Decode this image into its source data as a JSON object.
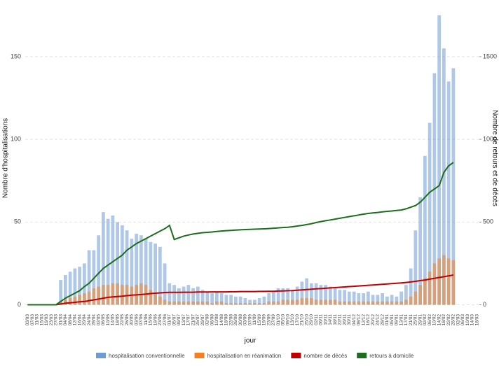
{
  "chart_data": {
    "type": "bar",
    "x_label": "jour",
    "y_label": "Nombre d'hospitalisations",
    "y2_label": "Nombre de retours et de décès",
    "categories": [
      "03/03",
      "07/03",
      "11/03",
      "15/03",
      "19/03",
      "23/03",
      "27/03",
      "31/03",
      "04/04",
      "08/04",
      "12/04",
      "16/04",
      "20/04",
      "24/04",
      "28/04",
      "02/05",
      "06/05",
      "10/05",
      "14/05",
      "18/05",
      "22/05",
      "26/05",
      "30/05",
      "03/06",
      "07/06",
      "11/06",
      "15/06",
      "19/06",
      "23/06",
      "27/06",
      "01/07",
      "05/07",
      "09/07",
      "13/07",
      "17/07",
      "21/07",
      "25/07",
      "29/07",
      "02/08",
      "06/08",
      "10/08",
      "14/08",
      "18/08",
      "22/08",
      "26/08",
      "30/08",
      "03/09",
      "07/09",
      "11/09",
      "15/09",
      "19/09",
      "23/09",
      "27/09",
      "01/10",
      "05/10",
      "09/10",
      "13/10",
      "17/10",
      "21/10",
      "25/10",
      "29/10",
      "02/11",
      "06/11",
      "10/11",
      "14/11",
      "18/11",
      "22/11",
      "26/11",
      "30/11",
      "04/12",
      "08/12",
      "12/12",
      "16/12",
      "20/12",
      "24/12",
      "28/12",
      "01/01",
      "05/01",
      "09/01",
      "13/01",
      "17/01",
      "21/01",
      "25/01",
      "29/01",
      "02/02",
      "06/02",
      "10/02",
      "14/02",
      "18/02",
      "22/02",
      "26/02",
      "02/03",
      "06/03",
      "10/03",
      "14/03",
      "18/03"
    ],
    "ylim": [
      -4,
      180
    ],
    "yticks": [
      0,
      50,
      100,
      150
    ],
    "y2lim": [
      -40,
      1800
    ],
    "y2ticks": [
      0,
      500,
      1000,
      1500
    ],
    "grid": true,
    "legend": "bottom",
    "series": [
      {
        "name": "hospitalisation conventionnelle",
        "type": "bar",
        "color": "#6d9bd3",
        "values": [
          0,
          0,
          0,
          0,
          0,
          0,
          0,
          15,
          18,
          20,
          22,
          23,
          25,
          33,
          33,
          42,
          56,
          52,
          54,
          50,
          48,
          45,
          40,
          43,
          42,
          40,
          38,
          37,
          35,
          25,
          13,
          12,
          10,
          11,
          12,
          10,
          11,
          9,
          8,
          7,
          8,
          7,
          6,
          6,
          5,
          5,
          4,
          3,
          3,
          4,
          5,
          7,
          8,
          10,
          10,
          10,
          9,
          11,
          14,
          16,
          13,
          13,
          12,
          12,
          11,
          10,
          9,
          9,
          8,
          8,
          7,
          7,
          8,
          6,
          6,
          7,
          5,
          6,
          5,
          8,
          12,
          22,
          45,
          65,
          90,
          110,
          140,
          175,
          155,
          135,
          143,
          null,
          null,
          null,
          null,
          null
        ]
      },
      {
        "name": "hospitalisation en réanimation",
        "type": "bar",
        "color": "#f47f24",
        "values": [
          0,
          0,
          0,
          0,
          0,
          0,
          0,
          2,
          3,
          4,
          5,
          6,
          7,
          8,
          10,
          11,
          12,
          12,
          13,
          13,
          12,
          12,
          11,
          12,
          13,
          12,
          9,
          7,
          5,
          3,
          2,
          2,
          2,
          2,
          2,
          2,
          2,
          2,
          2,
          1,
          2,
          2,
          1,
          1,
          1,
          1,
          1,
          1,
          1,
          1,
          1,
          2,
          2,
          2,
          3,
          3,
          3,
          3,
          4,
          4,
          4,
          3,
          3,
          3,
          3,
          3,
          2,
          2,
          2,
          2,
          2,
          2,
          2,
          2,
          2,
          2,
          2,
          2,
          2,
          2,
          3,
          5,
          8,
          12,
          16,
          20,
          25,
          28,
          30,
          28,
          27,
          null,
          null,
          null,
          null,
          null
        ]
      },
      {
        "name": "nombre de décès",
        "type": "line",
        "axis": "y2",
        "color": "#c00000",
        "values": [
          0,
          0,
          0,
          0,
          0,
          0,
          0,
          5,
          10,
          12,
          15,
          18,
          20,
          25,
          30,
          35,
          40,
          45,
          48,
          50,
          52,
          55,
          58,
          60,
          62,
          65,
          68,
          70,
          72,
          74,
          75,
          75,
          75,
          76,
          76,
          76,
          77,
          77,
          77,
          78,
          78,
          78,
          78,
          79,
          79,
          80,
          80,
          80,
          80,
          81,
          81,
          82,
          82,
          83,
          84,
          85,
          86,
          88,
          90,
          92,
          94,
          96,
          98,
          100,
          102,
          104,
          106,
          108,
          110,
          112,
          114,
          116,
          118,
          120,
          122,
          124,
          126,
          128,
          130,
          132,
          135,
          138,
          142,
          146,
          150,
          155,
          160,
          165,
          170,
          175,
          180,
          null,
          null,
          null,
          null,
          null
        ]
      },
      {
        "name": "retours à domicile",
        "type": "line",
        "axis": "y2",
        "color": "#1b6e1b",
        "values": [
          0,
          0,
          0,
          0,
          0,
          0,
          0,
          20,
          40,
          55,
          70,
          85,
          110,
          130,
          160,
          190,
          220,
          240,
          260,
          280,
          300,
          330,
          350,
          370,
          385,
          400,
          415,
          430,
          445,
          460,
          480,
          395,
          405,
          415,
          422,
          428,
          432,
          436,
          438,
          440,
          443,
          446,
          448,
          450,
          452,
          453,
          455,
          456,
          457,
          458,
          459,
          461,
          463,
          465,
          467,
          469,
          472,
          476,
          480,
          485,
          490,
          497,
          503,
          508,
          513,
          518,
          523,
          528,
          533,
          538,
          543,
          548,
          552,
          555,
          558,
          562,
          565,
          567,
          570,
          573,
          580,
          590,
          600,
          620,
          650,
          680,
          700,
          720,
          800,
          840,
          860,
          null,
          null,
          null,
          null,
          null
        ]
      }
    ]
  }
}
